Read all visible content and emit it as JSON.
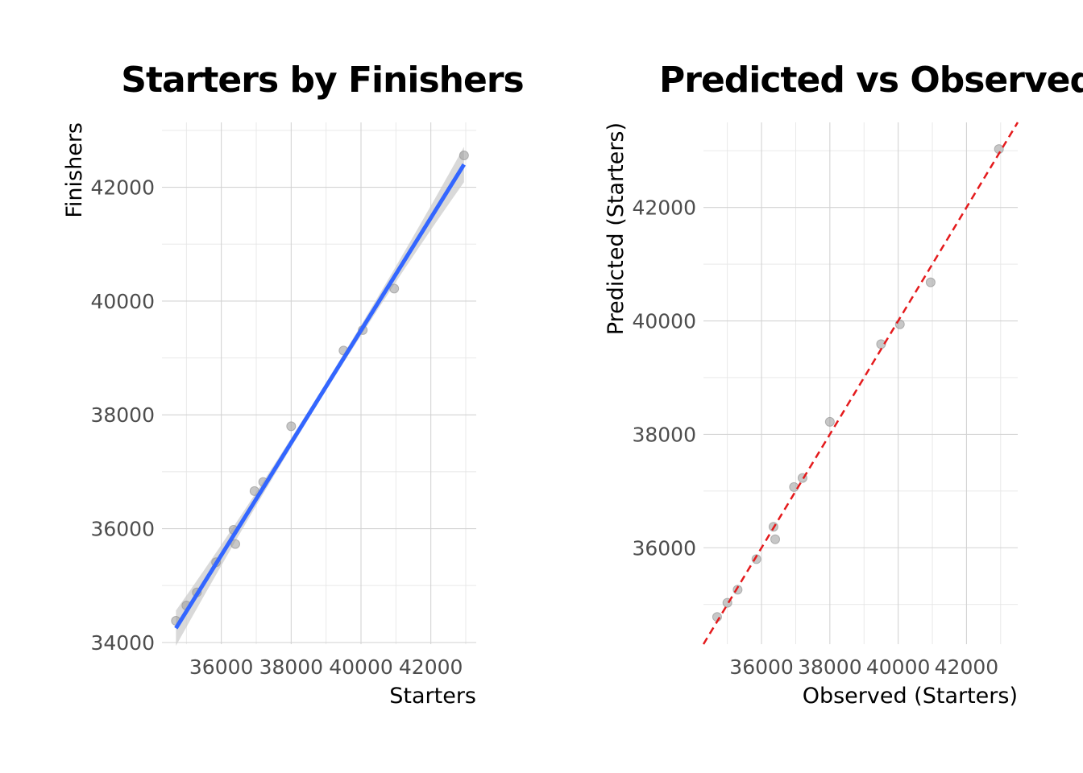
{
  "chart_data": [
    {
      "type": "scatter",
      "title": "Starters by Finishers",
      "xlabel": "Starters",
      "ylabel": "Finishers",
      "xlim": [
        34300,
        43300
      ],
      "ylim": [
        33970,
        43140
      ],
      "xticks": [
        "36000",
        "38000",
        "40000",
        "42000"
      ],
      "yticks": [
        "34000",
        "36000",
        "38000",
        "40000",
        "42000"
      ],
      "grid": true,
      "points": {
        "color": "#999999",
        "x": [
          34700,
          35000,
          35300,
          35850,
          36350,
          36400,
          36950,
          37200,
          38000,
          39500,
          40050,
          40950,
          42950
        ],
        "y": [
          34380,
          34650,
          34880,
          35410,
          35980,
          35730,
          36660,
          36820,
          37800,
          39130,
          39490,
          40220,
          42560
        ]
      },
      "fit_line": {
        "type": "linear smooth with confidence band",
        "color": "#3366ff",
        "band_color": "#cccccc",
        "x": [
          34700,
          42950
        ],
        "y": [
          34250,
          42400
        ]
      }
    },
    {
      "type": "scatter",
      "title": "Predicted vs Observed",
      "xlabel": "Observed (Starters)",
      "ylabel": "Predicted (Starters)",
      "xlim": [
        34300,
        43500
      ],
      "ylim": [
        34300,
        43500
      ],
      "xticks": [
        "36000",
        "38000",
        "40000",
        "42000"
      ],
      "yticks": [
        "36000",
        "38000",
        "40000",
        "42000"
      ],
      "grid": true,
      "points": {
        "color": "#999999",
        "x": [
          34700,
          35000,
          35300,
          35850,
          36350,
          36400,
          36950,
          37200,
          38000,
          39500,
          40050,
          40950,
          42950
        ],
        "y": [
          34780,
          35030,
          35260,
          35800,
          36370,
          36150,
          37070,
          37230,
          38220,
          39590,
          39940,
          40680,
          43030
        ]
      },
      "reference_line": {
        "type": "identity y = x",
        "color": "#e41a1c",
        "style": "dashed"
      }
    }
  ]
}
